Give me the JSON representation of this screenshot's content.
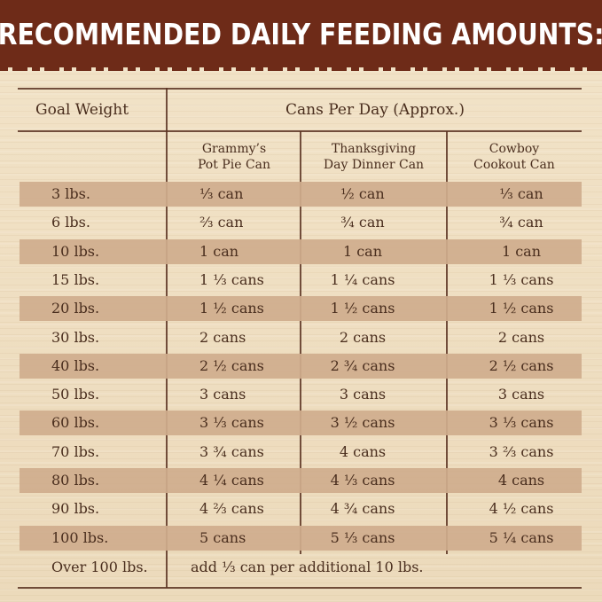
{
  "banner": {
    "title": "RECOMMENDED DAILY FEEDING AMOUNTS:"
  },
  "table": {
    "goal_header": "Goal Weight",
    "cans_header": "Cans Per Day (Approx.)",
    "columns": [
      {
        "line1": "Grammy’s",
        "line2": "Pot Pie Can"
      },
      {
        "line1": "Thanksgiving",
        "line2": "Day Dinner Can"
      },
      {
        "line1": "Cowboy",
        "line2": "Cookout Can"
      }
    ],
    "rows": [
      {
        "weight": "3 lbs.",
        "grammy": "⅓ can",
        "thanksgiving": "½ can",
        "cowboy": "⅓ can"
      },
      {
        "weight": "6 lbs.",
        "grammy": "⅔ can",
        "thanksgiving": "¾ can",
        "cowboy": "¾ can"
      },
      {
        "weight": "10 lbs.",
        "grammy": "1 can",
        "thanksgiving": "1 can",
        "cowboy": "1 can"
      },
      {
        "weight": "15 lbs.",
        "grammy": "1 ⅓ cans",
        "thanksgiving": "1 ¼ cans",
        "cowboy": "1 ⅓ cans"
      },
      {
        "weight": "20 lbs.",
        "grammy": "1 ½ cans",
        "thanksgiving": "1 ½ cans",
        "cowboy": "1 ½ cans"
      },
      {
        "weight": "30 lbs.",
        "grammy": "2 cans",
        "thanksgiving": "2 cans",
        "cowboy": "2 cans"
      },
      {
        "weight": "40 lbs.",
        "grammy": "2 ½ cans",
        "thanksgiving": "2 ¾ cans",
        "cowboy": "2 ½ cans"
      },
      {
        "weight": "50 lbs.",
        "grammy": "3 cans",
        "thanksgiving": "3 cans",
        "cowboy": "3 cans"
      },
      {
        "weight": "60 lbs.",
        "grammy": "3 ⅓ cans",
        "thanksgiving": "3 ½ cans",
        "cowboy": "3 ⅓ cans"
      },
      {
        "weight": "70 lbs.",
        "grammy": "3 ¾ cans",
        "thanksgiving": "4 cans",
        "cowboy": "3 ⅔ cans"
      },
      {
        "weight": "80 lbs.",
        "grammy": "4 ¼ cans",
        "thanksgiving": "4 ⅓ cans",
        "cowboy": "4 cans"
      },
      {
        "weight": "90 lbs.",
        "grammy": "4 ⅔ cans",
        "thanksgiving": "4 ¾ cans",
        "cowboy": "4 ½ cans"
      },
      {
        "weight": "100 lbs.",
        "grammy": "5 cans",
        "thanksgiving": "5 ⅓ cans",
        "cowboy": "5 ¼ cans"
      }
    ],
    "footer": {
      "weight": "Over 100 lbs.",
      "note": "add ⅓ can per additional 10 lbs."
    }
  },
  "colors": {
    "banner": "#6e2b18",
    "band": "#cfad8d",
    "text": "#4a2e1e",
    "background": "#efdfc2"
  }
}
